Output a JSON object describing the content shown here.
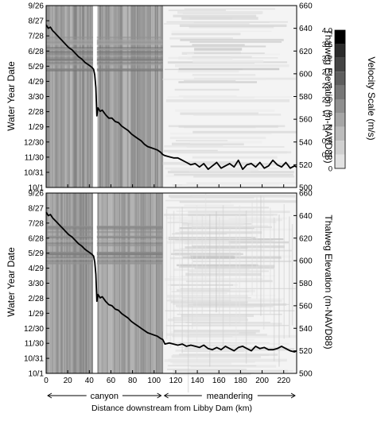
{
  "caption": "Distance downstream from Libby Dam (km)",
  "colorbar": {
    "title": "Velocity Scale (m/s)",
    "ticks": [
      "4.0",
      "3.6",
      "3.2",
      "2.8",
      "2.4",
      "2.0",
      "1.6",
      "1.2",
      "0.8",
      "0.4",
      "0"
    ],
    "colors": [
      "#000000",
      "#2b2b2b",
      "#444444",
      "#5e5e5e",
      "#777777",
      "#8f8f8f",
      "#a6a6a6",
      "#bcbcbc",
      "#d0d0d0",
      "#e2e2e2",
      "#f2f2f2"
    ]
  },
  "regions": [
    {
      "label": "canyon",
      "x_start": 0,
      "x_end": 108
    },
    {
      "label": "meandering",
      "x_start": 108,
      "x_end": 232
    }
  ],
  "chart_data": [
    {
      "type": "heatmap",
      "xlabel": "",
      "ylabel": "Water Year Date",
      "y2label": "Thalweg Elevation (m-NAVD88)",
      "x_ticks": [
        0,
        20,
        40,
        60,
        80,
        100,
        120,
        140,
        160,
        180,
        200,
        220
      ],
      "xlim": [
        0,
        232
      ],
      "date_ticks": [
        "10/1",
        "10/31",
        "11/30",
        "12/30",
        "1/29",
        "2/28",
        "3/30",
        "4/29",
        "5/29",
        "6/28",
        "7/28",
        "8/27",
        "9/26"
      ],
      "y2_ticks": [
        500,
        520,
        540,
        560,
        580,
        600,
        620,
        640,
        660
      ],
      "y2lim": [
        500,
        660
      ],
      "legend": "none",
      "series": [
        {
          "x": [
            0,
            2,
            4,
            6,
            8,
            10,
            12,
            15,
            18,
            21,
            24,
            27,
            30,
            33,
            36,
            39,
            42,
            44,
            45,
            46,
            47,
            48,
            50,
            52,
            55,
            58,
            61,
            64,
            67,
            70,
            73,
            76,
            79,
            82,
            85,
            88,
            91,
            94,
            97,
            100,
            103,
            106,
            108,
            110,
            114,
            118,
            122,
            126,
            130,
            134,
            138,
            142,
            146,
            150,
            154,
            158,
            162,
            166,
            170,
            174,
            178,
            182,
            186,
            190,
            194,
            198,
            202,
            206,
            210,
            214,
            218,
            222,
            226,
            230,
            232
          ],
          "values": [
            643,
            640,
            641,
            638,
            636,
            634,
            632,
            629,
            626,
            623,
            621,
            618,
            615,
            613,
            610,
            608,
            606,
            604,
            599,
            588,
            563,
            570,
            567,
            568,
            564,
            561,
            561,
            558,
            557,
            554,
            552,
            550,
            547,
            545,
            543,
            541,
            538,
            536,
            535,
            534,
            533,
            531,
            529,
            528,
            527,
            526,
            526,
            524,
            522,
            520,
            521,
            518,
            521,
            516,
            519,
            522,
            517,
            519,
            521,
            518,
            524,
            516,
            520,
            521,
            518,
            522,
            517,
            519,
            524,
            520,
            518,
            522,
            517,
            519,
            518
          ]
        }
      ]
    },
    {
      "type": "heatmap",
      "xlabel": "",
      "ylabel": "Water Year Date",
      "y2label": "Thalweg Elevation (m-NAVD88)",
      "x_ticks": [
        0,
        20,
        40,
        60,
        80,
        100,
        120,
        140,
        160,
        180,
        200,
        220
      ],
      "xlim": [
        0,
        232
      ],
      "date_ticks": [
        "10/1",
        "10/31",
        "11/30",
        "12/30",
        "1/29",
        "2/28",
        "3/30",
        "4/29",
        "5/29",
        "6/28",
        "7/28",
        "8/27",
        "9/26"
      ],
      "y2_ticks": [
        500,
        520,
        540,
        560,
        580,
        600,
        620,
        640,
        660
      ],
      "y2lim": [
        500,
        660
      ],
      "legend": "none",
      "series": [
        {
          "x": [
            0,
            2,
            4,
            6,
            8,
            10,
            12,
            15,
            18,
            21,
            24,
            27,
            30,
            33,
            36,
            39,
            42,
            44,
            45,
            46,
            47,
            48,
            50,
            52,
            55,
            58,
            61,
            64,
            67,
            70,
            73,
            76,
            79,
            82,
            85,
            88,
            91,
            94,
            97,
            100,
            103,
            106,
            108,
            110,
            114,
            118,
            122,
            126,
            130,
            134,
            138,
            142,
            146,
            150,
            154,
            158,
            162,
            166,
            170,
            174,
            178,
            182,
            186,
            190,
            194,
            198,
            202,
            206,
            210,
            214,
            218,
            222,
            226,
            230,
            232
          ],
          "values": [
            643,
            640,
            641,
            638,
            636,
            634,
            632,
            629,
            626,
            623,
            621,
            618,
            615,
            613,
            610,
            608,
            606,
            604,
            599,
            588,
            564,
            570,
            567,
            568,
            564,
            561,
            560,
            557,
            556,
            553,
            551,
            549,
            546,
            544,
            542,
            540,
            538,
            536,
            535,
            534,
            533,
            531,
            530,
            526,
            527,
            526,
            525,
            526,
            524,
            525,
            524,
            523,
            525,
            522,
            521,
            523,
            521,
            524,
            522,
            520,
            523,
            524,
            522,
            520,
            524,
            522,
            523,
            521,
            521,
            522,
            524,
            522,
            520,
            519,
            520
          ]
        }
      ]
    }
  ]
}
